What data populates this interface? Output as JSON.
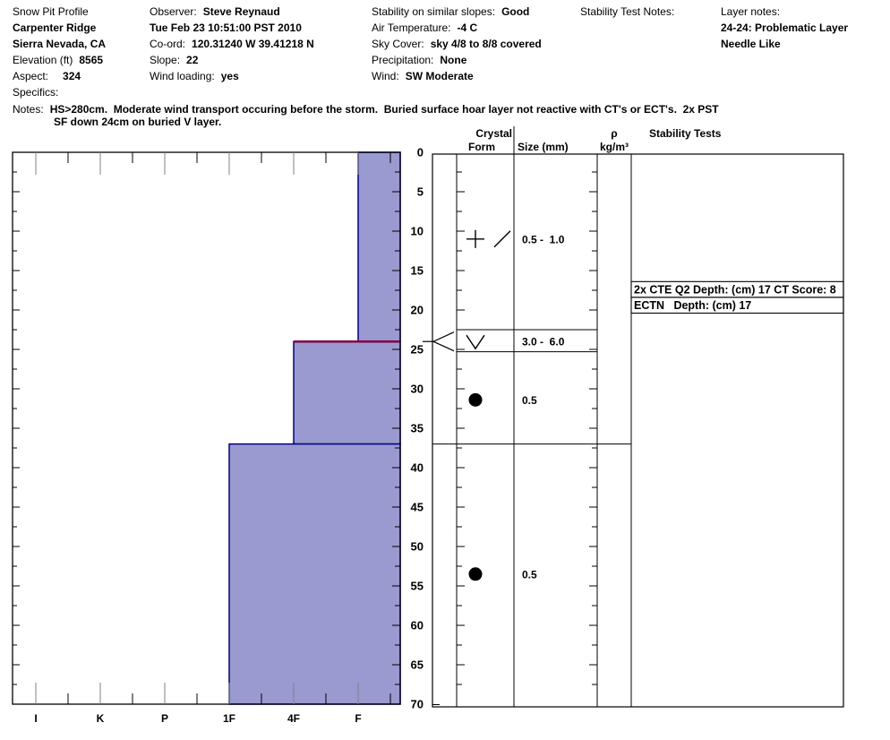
{
  "header": {
    "col1": {
      "title": "Snow Pit Profile",
      "site": "Carpenter Ridge",
      "region": "Sierra Nevada, CA",
      "elevation_label": "Elevation (ft)",
      "elevation": "8565",
      "aspect_label": "Aspect:",
      "aspect": "324",
      "specifics_label": "Specifics:"
    },
    "col2": {
      "observer_label": "Observer:",
      "observer": "Steve Reynaud",
      "datetime": "Tue Feb 23 10:51:00 PST 2010",
      "coord_label": "Co-ord:",
      "coord": "120.31240 W 39.41218 N",
      "slope_label": "Slope:",
      "slope": "22",
      "wind_loading_label": "Wind loading:",
      "wind_loading": "yes"
    },
    "col3": {
      "stability_label": "Stability on similar slopes:",
      "stability": "Good",
      "air_temp_label": "Air Temperature:",
      "air_temp": "-4 C",
      "sky_label": "Sky Cover:",
      "sky": "sky 4/8 to 8/8 covered",
      "precip_label": "Precipitation:",
      "precip": "None",
      "wind_label": "Wind:",
      "wind": "SW Moderate"
    },
    "col4": {
      "stability_test_notes_label": "Stability Test Notes:"
    },
    "col5": {
      "layer_notes_label": "Layer notes:",
      "note1": "24-24: Problematic Layer",
      "note2": "Needle Like"
    },
    "notes_label": "Notes:",
    "notes_line1": "HS>280cm.  Moderate wind transport occuring before the storm.  Buried surface hoar layer not reactive with CT's or ECT's.  2x PST",
    "notes_line2": "SF down 24cm on buried V layer."
  },
  "chart_data": {
    "type": "bar",
    "title": "Snow pit hardness profile",
    "depth_axis": {
      "unit": "cm",
      "min": 0,
      "max": 70,
      "major_tick": 5,
      "minor_tick": 2.5
    },
    "hardness_axis": {
      "labels": [
        "I",
        "K",
        "P",
        "1F",
        "4F",
        "F"
      ]
    },
    "layers": [
      {
        "top_cm": 0,
        "bottom_cm": 24,
        "hardness": "F"
      },
      {
        "top_cm": 24,
        "bottom_cm": 37,
        "hardness": "4F"
      },
      {
        "top_cm": 37,
        "bottom_cm": 70,
        "hardness": "1F"
      }
    ],
    "problematic_layer_depth_cm": 24,
    "table_layer_lines_cm": [
      37
    ],
    "grains": [
      {
        "depth_cm": 11,
        "symbols": [
          "plus",
          "slash"
        ],
        "size_mm": "0.5 -  1.0"
      },
      {
        "depth_cm": 24,
        "symbols": [
          "surface-hoar"
        ],
        "size_mm": "3.0 -  6.0",
        "row_box": {
          "top_cm": 22.5,
          "bottom_cm": 25.3
        },
        "arrow": true
      },
      {
        "depth_cm": 31.4,
        "symbols": [
          "round"
        ],
        "size_mm": "0.5"
      },
      {
        "depth_cm": 53.5,
        "symbols": [
          "round"
        ],
        "size_mm": "0.5"
      }
    ],
    "stability_tests": [
      {
        "text": "2x CTE Q2 Depth: (cm) 17 CT Score: 8",
        "top_cm": 16.4,
        "bottom_cm": 18.4
      },
      {
        "text": "ECTN   Depth: (cm) 17",
        "top_cm": 18.4,
        "bottom_cm": 20.4
      }
    ],
    "columns": {
      "crystal": "Crystal",
      "form": "Form",
      "size": "Size (mm)",
      "rho": "ρ",
      "rho_units": "kg/m³",
      "stability": "Stability Tests"
    },
    "colors": {
      "bar_fill": "#9A99D0",
      "bar_border": "#000080",
      "problematic_line": "#800040",
      "boundary_line": "#0000C0",
      "major_tick": "#808080",
      "line": "#000000"
    }
  }
}
